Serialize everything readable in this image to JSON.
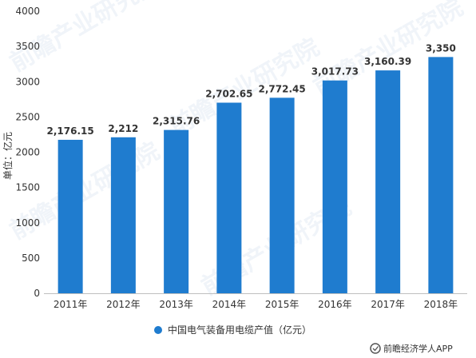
{
  "chart_data": {
    "type": "bar",
    "categories": [
      "2011年",
      "2012年",
      "2013年",
      "2014年",
      "2015年",
      "2016年",
      "2017年",
      "2018年"
    ],
    "series": [
      {
        "name": "中国电气装备用电缆产值（亿元）",
        "values": [
          2176.15,
          2212,
          2315.76,
          2702.65,
          2772.45,
          3017.73,
          3160.39,
          3350
        ],
        "labels": [
          "2,176.15",
          "2,212",
          "2,315.76",
          "2,702.65",
          "2,772.45",
          "3,017.73",
          "3,160.39",
          "3,350"
        ]
      }
    ],
    "ylabel": "单位：亿元",
    "ylim": [
      0,
      4000
    ],
    "yticks": [
      0,
      500,
      1000,
      1500,
      2000,
      2500,
      3000,
      3500,
      4000
    ],
    "grid": false,
    "legend": "bottom-center",
    "bar_color": "#1f7ccf",
    "watermark": "前瞻产业研究院"
  },
  "footer": {
    "text": "前瞻经济学人APP"
  }
}
